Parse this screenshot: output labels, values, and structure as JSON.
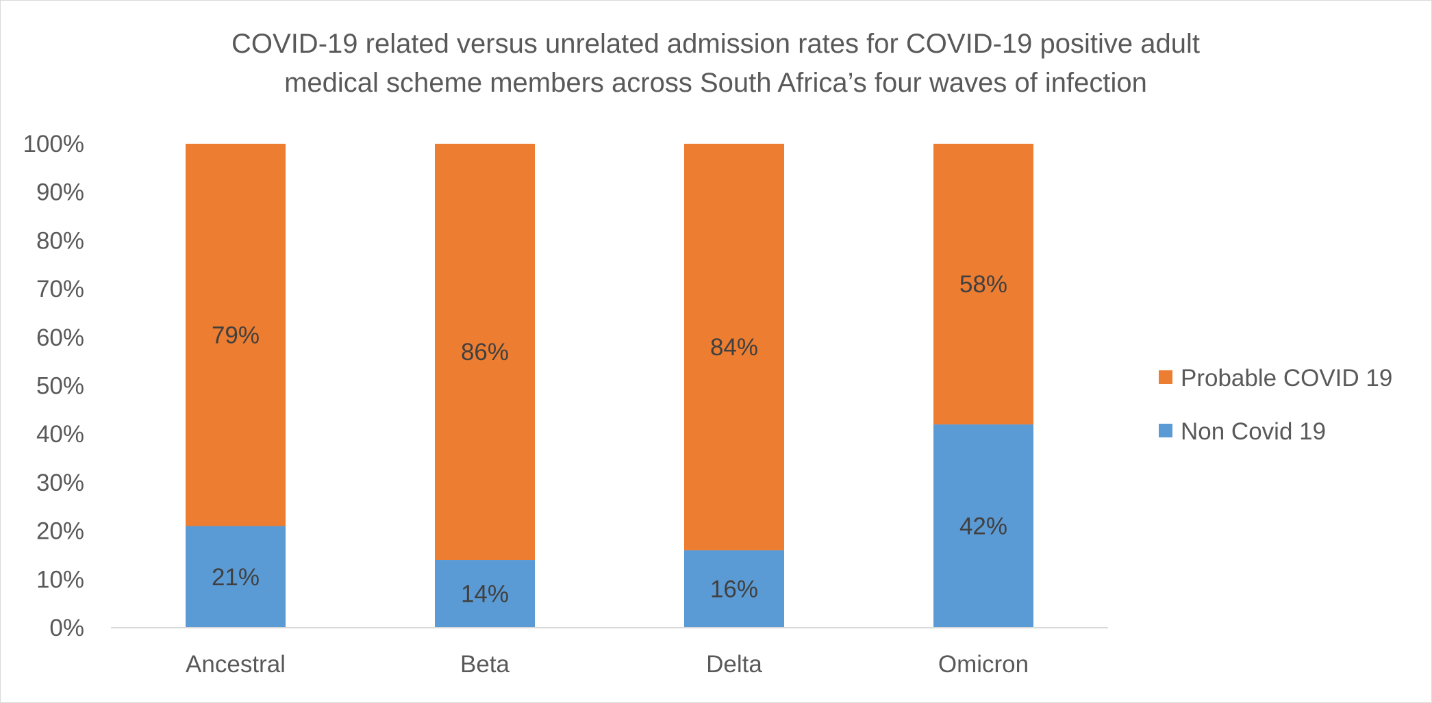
{
  "chart_data": {
    "type": "bar",
    "stacked": true,
    "title_lines": [
      "COVID-19 related versus unrelated admission rates for COVID-19 positive adult",
      "medical scheme members across South Africa’s four waves of infection"
    ],
    "categories": [
      "Ancestral",
      "Beta",
      "Delta",
      "Omicron"
    ],
    "series": [
      {
        "name": "Non Covid 19",
        "values": [
          21,
          14,
          16,
          42
        ],
        "labels": [
          "21%",
          "14%",
          "16%",
          "42%"
        ],
        "color": "#5b9bd5"
      },
      {
        "name": "Probable COVID 19",
        "values": [
          79,
          86,
          84,
          58
        ],
        "labels": [
          "79%",
          "86%",
          "84%",
          "58%"
        ],
        "color": "#ed7d31"
      }
    ],
    "y_ticks": [
      "0%",
      "10%",
      "20%",
      "30%",
      "40%",
      "50%",
      "60%",
      "70%",
      "80%",
      "90%",
      "100%"
    ],
    "ylim": [
      0,
      100
    ],
    "grid": false,
    "legend_position": "right",
    "legend_order": [
      "Probable COVID 19",
      "Non Covid 19"
    ],
    "axis_color": "#d9d9d9",
    "text_color": "#595959"
  }
}
